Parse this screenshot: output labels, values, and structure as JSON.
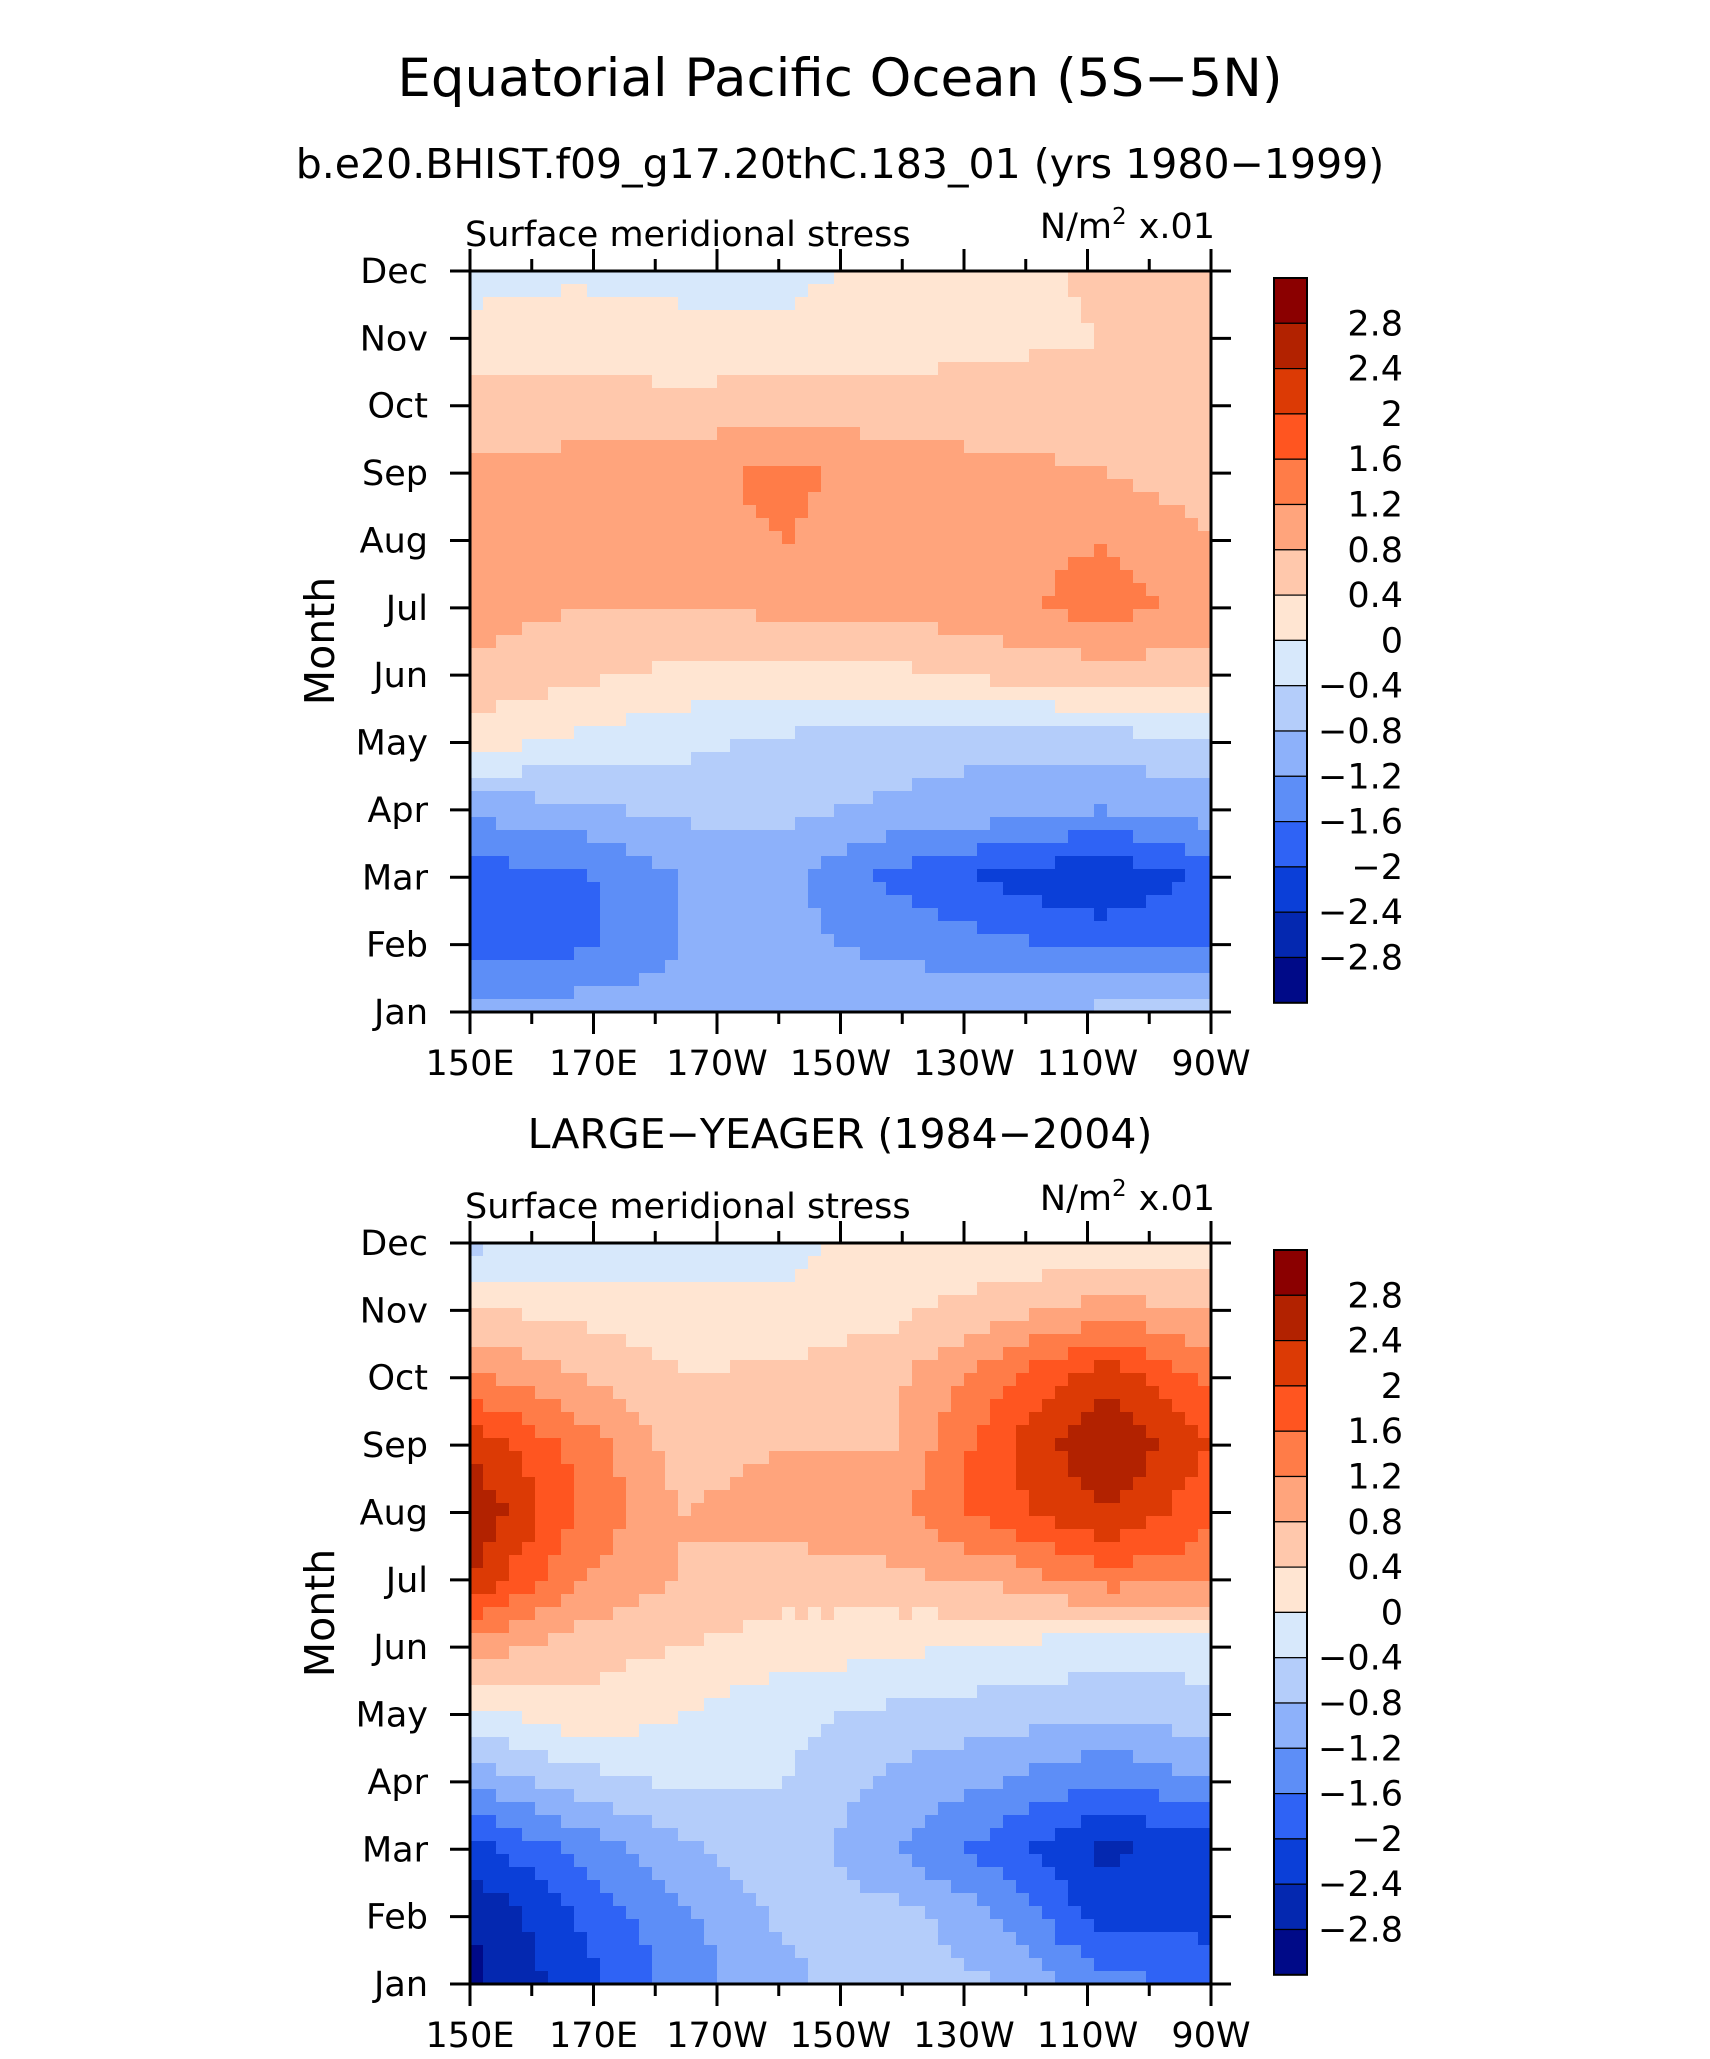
{
  "title": "Equatorial Pacific Ocean (5S−5N)",
  "subtitle": "b.e20.BHIST.f09_g17.20thC.183_01 (yrs 1980−1999)",
  "chart_data": [
    {
      "type": "heatmap",
      "panel_title": "",
      "variable": "Surface meridional stress",
      "units_text": "N/m",
      "units_sup": "2",
      "units_scale": "x.01",
      "ylabel": "Month",
      "x_ticks": [
        "150E",
        "170E",
        "170W",
        "150W",
        "130W",
        "110W",
        "90W"
      ],
      "y_ticks": [
        "Jan",
        "Feb",
        "Mar",
        "Apr",
        "May",
        "Jun",
        "Jul",
        "Aug",
        "Sep",
        "Oct",
        "Nov",
        "Dec"
      ],
      "levels": [
        "2.8",
        "2.4",
        "2",
        "1.6",
        "1.2",
        "0.8",
        "0.4",
        "0",
        "−0.4",
        "−0.8",
        "−1.2",
        "−1.6",
        "−2",
        "−2.4",
        "−2.8"
      ],
      "colors": [
        "#8b0000",
        "#b22200",
        "#dc3a05",
        "#ff5520",
        "#ff7c48",
        "#ffa47c",
        "#ffc8ac",
        "#ffe5d2",
        "#d7e8fb",
        "#b4cdfa",
        "#8db1fa",
        "#5d8ef7",
        "#2f63f5",
        "#0b3fd8",
        "#0428b0",
        "#000a88"
      ],
      "values": [
        [
          -1.0,
          -1.0,
          -1.0,
          -1.0,
          -0.9,
          -0.8,
          -0.7,
          -0.6
        ],
        [
          -1.9,
          -1.7,
          -1.2,
          -1.1,
          -1.3,
          -1.5,
          -1.7,
          -1.6
        ],
        [
          -1.8,
          -1.7,
          -1.2,
          -1.1,
          -1.7,
          -2.1,
          -2.4,
          -1.9
        ],
        [
          -1.1,
          -0.9,
          -0.7,
          -0.7,
          -0.9,
          -1.0,
          -1.2,
          -1.0
        ],
        [
          0.2,
          -0.1,
          -0.3,
          -0.5,
          -0.6,
          -0.7,
          -0.6,
          -0.5
        ],
        [
          0.7,
          0.5,
          0.3,
          0.2,
          0.3,
          0.5,
          0.6,
          0.6
        ],
        [
          1.0,
          0.8,
          0.8,
          0.9,
          0.9,
          1.1,
          1.4,
          1.0
        ],
        [
          1.1,
          1.0,
          1.1,
          1.2,
          1.0,
          1.0,
          1.2,
          0.8
        ],
        [
          0.9,
          1.0,
          1.1,
          1.3,
          1.0,
          0.9,
          0.8,
          0.6
        ],
        [
          0.6,
          0.5,
          0.5,
          0.6,
          0.6,
          0.6,
          0.6,
          0.4
        ],
        [
          0.2,
          0.3,
          0.2,
          0.1,
          0.2,
          0.3,
          0.4,
          0.4
        ],
        [
          -0.2,
          -0.1,
          -0.2,
          -0.1,
          0.1,
          0.2,
          0.5,
          0.5
        ]
      ]
    },
    {
      "type": "heatmap",
      "panel_title": "LARGE−YEAGER (1984−2004)",
      "variable": "Surface meridional stress",
      "units_text": "N/m",
      "units_sup": "2",
      "units_scale": "x.01",
      "ylabel": "Month",
      "x_ticks": [
        "150E",
        "170E",
        "170W",
        "150W",
        "130W",
        "110W",
        "90W"
      ],
      "y_ticks": [
        "Jan",
        "Feb",
        "Mar",
        "Apr",
        "May",
        "Jun",
        "Jul",
        "Aug",
        "Sep",
        "Oct",
        "Nov",
        "Dec"
      ],
      "levels": [
        "2.8",
        "2.4",
        "2",
        "1.6",
        "1.2",
        "0.8",
        "0.4",
        "0",
        "−0.4",
        "−0.8",
        "−1.2",
        "−1.6",
        "−2",
        "−2.4",
        "−2.8"
      ],
      "colors": [
        "#8b0000",
        "#b22200",
        "#dc3a05",
        "#ff5520",
        "#ff7c48",
        "#ffa47c",
        "#ffc8ac",
        "#ffe5d2",
        "#d7e8fb",
        "#b4cdfa",
        "#8db1fa",
        "#5d8ef7",
        "#2f63f5",
        "#0b3fd8",
        "#0428b0",
        "#000a88"
      ],
      "values": [
        [
          -2.9,
          -2.2,
          -1.4,
          -0.9,
          -0.5,
          -0.8,
          -1.5,
          -1.6
        ],
        [
          -2.8,
          -2.0,
          -1.3,
          -0.7,
          -0.6,
          -1.2,
          -2.2,
          -2.2
        ],
        [
          -2.2,
          -1.5,
          -0.9,
          -0.5,
          -1.2,
          -1.8,
          -2.5,
          -2.2
        ],
        [
          -1.1,
          -0.6,
          -0.3,
          -0.4,
          -0.9,
          -1.2,
          -1.6,
          -1.2
        ],
        [
          -0.2,
          0.3,
          0.0,
          -0.3,
          -0.5,
          -0.6,
          -0.7,
          -0.6
        ],
        [
          1.0,
          0.6,
          0.4,
          0.2,
          0.1,
          -0.1,
          -0.2,
          -0.2
        ],
        [
          2.4,
          1.2,
          0.8,
          0.6,
          0.7,
          0.9,
          1.4,
          1.3
        ],
        [
          2.8,
          1.6,
          0.8,
          1.0,
          1.1,
          1.8,
          2.4,
          1.7
        ],
        [
          2.3,
          1.5,
          0.6,
          0.8,
          0.8,
          1.9,
          2.8,
          2.0
        ],
        [
          1.3,
          0.8,
          0.4,
          0.5,
          0.7,
          1.5,
          2.3,
          1.5
        ],
        [
          0.4,
          0.3,
          0.2,
          0.1,
          0.3,
          0.6,
          1.0,
          0.8
        ],
        [
          -0.5,
          -0.3,
          -0.2,
          -0.1,
          0.2,
          0.1,
          0.0,
          0.1
        ]
      ]
    }
  ]
}
